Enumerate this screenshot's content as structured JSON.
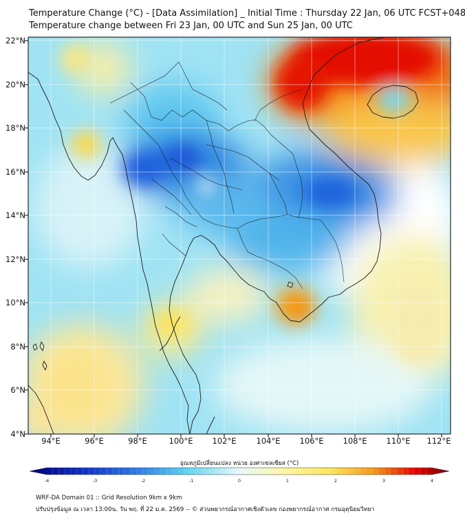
{
  "header": {
    "title_line1": "Temperature Change (°C) - [Data Assimilation] _ Initial Time : Thursday 22 Jan, 06 UTC FCST+048",
    "title_line2": "Temperature change between Fri 23 Jan, 00 UTC and Sun 25 Jan, 00 UTC"
  },
  "map": {
    "lon_ticks": [
      "94°E",
      "96°E",
      "98°E",
      "100°E",
      "102°E",
      "104°E",
      "106°E",
      "108°E",
      "110°E",
      "112°E"
    ],
    "lat_ticks": [
      "22°N",
      "20°N",
      "18°N",
      "16°N",
      "14°N",
      "12°N",
      "10°N",
      "8°N",
      "6°N",
      "4°N"
    ],
    "lon_range": [
      93.0,
      112.3
    ],
    "lat_range": [
      4.0,
      22.2
    ]
  },
  "colorbar": {
    "title": "อุณหภูมิเปลี่ยนแปลง หน่วย องศาเซลเซียส (°C)",
    "min": -4,
    "max": 4,
    "tick_labels": [
      "-4",
      "-3",
      "-2",
      "-1",
      "0",
      "1",
      "2",
      "3",
      "4"
    ],
    "colors": {
      "dark_blue": "#00007a",
      "blue": "#1f4fd6",
      "light_blue": "#5ad2f0",
      "pale": "#e8f8fb",
      "yellow": "#fce35a",
      "orange": "#f39a19",
      "red": "#e60000",
      "dark_red": "#7a0000"
    }
  },
  "footer": {
    "line1": "WRF-DA Domain 01 :: Grid Resolution 9km x 9km",
    "line2": "ปรับปรุงข้อมูล ณ เวลา 13:00น. วัน พฤ. ที่ 22 ม.ค. 2569 -- © ส่วนพยากรณ์อากาศเชิงตัวเลข กองพยากรณ์อากาศ กรมอุตุนิยมวิทยา"
  }
}
